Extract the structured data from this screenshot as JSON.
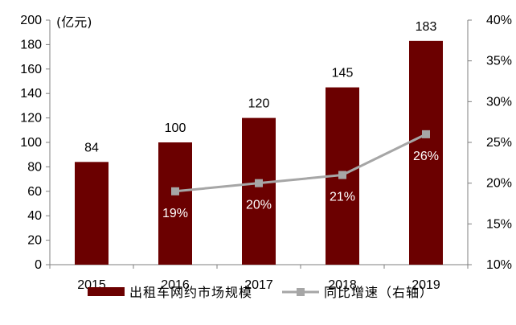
{
  "chart_data": {
    "type": "bar",
    "categories": [
      "2015",
      "2016",
      "2017",
      "2018",
      "2019"
    ],
    "y_unit_label": "(亿元)",
    "series": [
      {
        "name": "出租车网约市场规模",
        "type": "bar",
        "axis": "left",
        "values": [
          84,
          100,
          120,
          145,
          183
        ],
        "color": "#6b0000"
      },
      {
        "name": "同比增速（右轴）",
        "type": "line",
        "axis": "right",
        "values": [
          null,
          0.19,
          0.2,
          0.21,
          0.26
        ],
        "labels": [
          "",
          "19%",
          "20%",
          "21%",
          "26%"
        ],
        "color": "#a6a6a6"
      }
    ],
    "ylim_left": [
      0,
      200
    ],
    "yticks_left": [
      "0",
      "20",
      "40",
      "60",
      "80",
      "100",
      "120",
      "140",
      "160",
      "180",
      "200"
    ],
    "ylim_right": [
      0.1,
      0.4
    ],
    "yticks_right": [
      "10%",
      "15%",
      "20%",
      "25%",
      "30%",
      "35%",
      "40%"
    ],
    "grid": false,
    "legend_position": "bottom"
  }
}
